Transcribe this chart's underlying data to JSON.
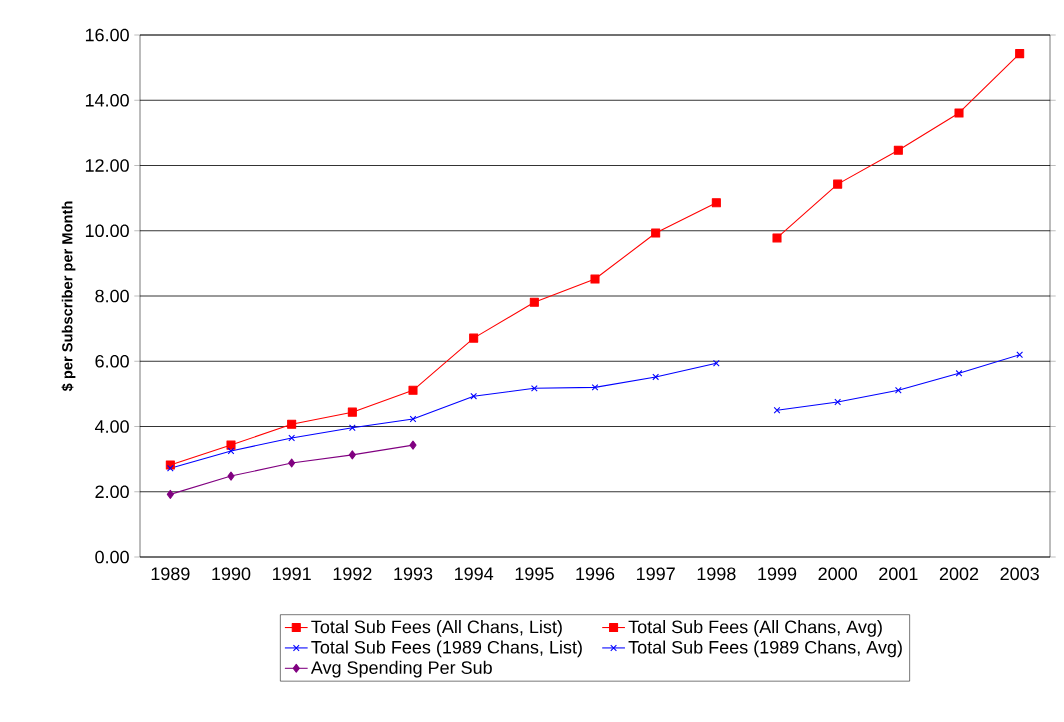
{
  "chart_data": {
    "type": "line",
    "ylabel": "$ per Subscriber per Month",
    "categories": [
      "1989",
      "1990",
      "1991",
      "1992",
      "1993",
      "1994",
      "1995",
      "1996",
      "1997",
      "1998",
      "1999",
      "2000",
      "2001",
      "2002",
      "2003"
    ],
    "ylim": [
      0,
      16
    ],
    "yticks": [
      {
        "value": 0,
        "label": "0.00"
      },
      {
        "value": 2,
        "label": "2.00"
      },
      {
        "value": 4,
        "label": "4.00"
      },
      {
        "value": 6,
        "label": "6.00"
      },
      {
        "value": 8,
        "label": "8.00"
      },
      {
        "value": 10,
        "label": "10.00"
      },
      {
        "value": 12,
        "label": "12.00"
      },
      {
        "value": 14,
        "label": "14.00"
      },
      {
        "value": 16,
        "label": "16.00"
      }
    ],
    "grid": "y",
    "legend": "bottom",
    "series": [
      {
        "name": "Total Sub Fees (All Chans, List)",
        "color": "#ff0000",
        "marker": "square",
        "values": [
          2.82,
          3.43,
          4.07,
          4.44,
          5.11,
          6.71,
          7.81,
          8.52,
          9.93,
          10.86,
          null,
          null,
          null,
          null,
          null
        ]
      },
      {
        "name": "Total Sub Fees (All Chans, Avg)",
        "color": "#ff0000",
        "marker": "square",
        "values": [
          null,
          null,
          null,
          null,
          null,
          null,
          null,
          null,
          null,
          null,
          9.78,
          11.43,
          12.47,
          13.61,
          15.43
        ]
      },
      {
        "name": "Total Sub Fees (1989 Chans, List)",
        "color": "#0000ff",
        "marker": "cross",
        "values": [
          2.72,
          3.25,
          3.65,
          3.96,
          4.23,
          4.93,
          5.17,
          5.2,
          5.52,
          5.94,
          null,
          null,
          null,
          null,
          null
        ]
      },
      {
        "name": "Total Sub Fees (1989 Chans, Avg)",
        "color": "#0000ff",
        "marker": "cross",
        "values": [
          null,
          null,
          null,
          null,
          null,
          null,
          null,
          null,
          null,
          null,
          4.5,
          4.75,
          5.11,
          5.63,
          6.2
        ]
      },
      {
        "name": "Avg Spending Per Sub",
        "color": "#800080",
        "marker": "diamond",
        "values": [
          1.92,
          2.48,
          2.88,
          3.13,
          3.43,
          null,
          null,
          null,
          null,
          null,
          null,
          null,
          null,
          null,
          null
        ]
      }
    ]
  }
}
